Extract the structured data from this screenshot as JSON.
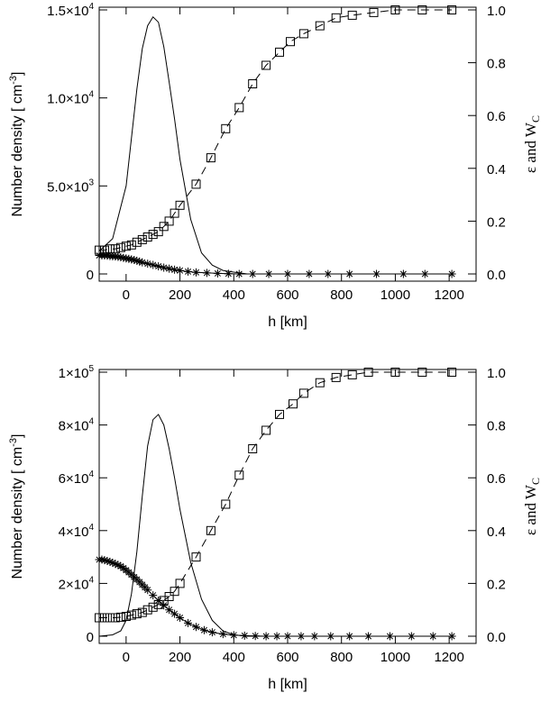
{
  "chart_data": [
    {
      "type": "line",
      "panel": "top",
      "xlabel": "h [km]",
      "ylabel": "Number density [ cm",
      "ylabel_exp": "-3",
      "ylabel_close": "]",
      "ylabel_right": "ε and W",
      "ylabel_right_sub": "C",
      "xlim": [
        -100,
        1300
      ],
      "ylim_left": [
        0,
        15000
      ],
      "ylim_right": [
        0,
        1.0
      ],
      "x_ticks": [
        0,
        200,
        400,
        600,
        800,
        1000,
        1200
      ],
      "y_left_ticks": [
        {
          "value": 0,
          "mant": "0",
          "exp": ""
        },
        {
          "value": 5000,
          "mant": "5.0×10",
          "exp": "3"
        },
        {
          "value": 10000,
          "mant": "1.0×10",
          "exp": "4"
        },
        {
          "value": 15000,
          "mant": "1.5×10",
          "exp": "4"
        }
      ],
      "y_right_ticks": [
        "0.0",
        "0.2",
        "0.4",
        "0.6",
        "0.8",
        "1.0"
      ],
      "series": [
        {
          "name": "Number density",
          "axis": "left",
          "style": "solid",
          "x": [
            -100,
            -50,
            0,
            40,
            60,
            80,
            100,
            120,
            140,
            160,
            180,
            200,
            240,
            280,
            320,
            360,
            400,
            450,
            500,
            600,
            800,
            1000,
            1200
          ],
          "y": [
            1300,
            2000,
            5000,
            10500,
            12800,
            14100,
            14600,
            14300,
            12900,
            10900,
            8800,
            6500,
            3100,
            1200,
            500,
            200,
            100,
            0,
            0,
            0,
            0,
            0,
            0
          ]
        },
        {
          "name": "W_C",
          "axis": "right",
          "style": "dashed",
          "marker": "square",
          "x": [
            -100,
            -80,
            -60,
            -40,
            -20,
            0,
            20,
            40,
            60,
            80,
            100,
            120,
            140,
            160,
            180,
            200,
            260,
            315,
            370,
            420,
            470,
            520,
            570,
            610,
            660,
            720,
            780,
            840,
            920,
            1000,
            1100,
            1210
          ],
          "y": [
            0.09,
            0.09,
            0.095,
            0.095,
            0.1,
            0.105,
            0.11,
            0.12,
            0.13,
            0.14,
            0.15,
            0.16,
            0.18,
            0.2,
            0.23,
            0.26,
            0.34,
            0.44,
            0.55,
            0.63,
            0.72,
            0.79,
            0.84,
            0.88,
            0.91,
            0.94,
            0.97,
            0.98,
            0.99,
            1.0,
            1.0,
            1.0
          ]
        },
        {
          "name": "ε",
          "axis": "right",
          "style": "solid",
          "marker": "star",
          "x": [
            -100,
            -90,
            -80,
            -70,
            -60,
            -50,
            -40,
            -30,
            -20,
            -10,
            0,
            10,
            20,
            30,
            40,
            50,
            60,
            80,
            100,
            120,
            140,
            160,
            180,
            200,
            230,
            260,
            300,
            340,
            380,
            420,
            470,
            530,
            600,
            680,
            750,
            830,
            930,
            1030,
            1110,
            1210
          ],
          "y": [
            0.07,
            0.07,
            0.07,
            0.069,
            0.068,
            0.067,
            0.066,
            0.065,
            0.063,
            0.061,
            0.059,
            0.057,
            0.055,
            0.053,
            0.05,
            0.047,
            0.044,
            0.039,
            0.034,
            0.029,
            0.024,
            0.02,
            0.016,
            0.013,
            0.009,
            0.006,
            0.004,
            0.002,
            0.001,
            0.0,
            0.0,
            0.0,
            0.0,
            0.0,
            0.0,
            0.0,
            0.0,
            0.0,
            0.0,
            0.0
          ]
        }
      ]
    },
    {
      "type": "line",
      "panel": "bottom",
      "xlabel": "h [km]",
      "ylabel": "Number density [ cm",
      "ylabel_exp": "-3",
      "ylabel_close": "]",
      "ylabel_right": "ε and W",
      "ylabel_right_sub": "C",
      "xlim": [
        -100,
        1300
      ],
      "ylim_left": [
        0,
        100000
      ],
      "ylim_right": [
        0,
        1.0
      ],
      "x_ticks": [
        0,
        200,
        400,
        600,
        800,
        1000,
        1200
      ],
      "y_left_ticks": [
        {
          "value": 0,
          "mant": "0",
          "exp": ""
        },
        {
          "value": 20000,
          "mant": "2×10",
          "exp": "4"
        },
        {
          "value": 40000,
          "mant": "4×10",
          "exp": "4"
        },
        {
          "value": 60000,
          "mant": "6×10",
          "exp": "4"
        },
        {
          "value": 80000,
          "mant": "8×10",
          "exp": "4"
        },
        {
          "value": 100000,
          "mant": "1×10",
          "exp": "5"
        }
      ],
      "y_right_ticks": [
        "0.0",
        "0.2",
        "0.4",
        "0.6",
        "0.8",
        "1.0"
      ],
      "series": [
        {
          "name": "Number density",
          "axis": "left",
          "style": "solid",
          "x": [
            -100,
            -50,
            -20,
            0,
            20,
            40,
            60,
            80,
            100,
            120,
            140,
            160,
            180,
            200,
            240,
            280,
            320,
            360,
            400,
            450,
            500,
            600,
            800,
            1000,
            1200
          ],
          "y": [
            0,
            500,
            2000,
            6000,
            16000,
            32000,
            53000,
            72000,
            82000,
            84000,
            80000,
            71000,
            60000,
            48000,
            28000,
            14000,
            6000,
            2000,
            500,
            0,
            0,
            0,
            0,
            0,
            0
          ]
        },
        {
          "name": "W_C",
          "axis": "right",
          "style": "dashed",
          "marker": "square",
          "x": [
            -100,
            -80,
            -60,
            -40,
            -20,
            0,
            20,
            40,
            60,
            80,
            100,
            120,
            140,
            160,
            180,
            200,
            260,
            315,
            370,
            420,
            470,
            520,
            570,
            620,
            660,
            720,
            780,
            840,
            900,
            1000,
            1100,
            1210
          ],
          "y": [
            0.07,
            0.07,
            0.07,
            0.07,
            0.072,
            0.075,
            0.08,
            0.085,
            0.09,
            0.1,
            0.11,
            0.12,
            0.135,
            0.15,
            0.17,
            0.2,
            0.3,
            0.4,
            0.5,
            0.61,
            0.71,
            0.78,
            0.84,
            0.88,
            0.92,
            0.96,
            0.98,
            0.99,
            1.0,
            1.0,
            1.0,
            1.0
          ]
        },
        {
          "name": "ε",
          "axis": "right",
          "style": "solid",
          "marker": "star",
          "x": [
            -100,
            -90,
            -80,
            -70,
            -60,
            -50,
            -40,
            -30,
            -20,
            -10,
            0,
            10,
            20,
            30,
            40,
            50,
            60,
            70,
            80,
            100,
            120,
            140,
            160,
            180,
            200,
            230,
            260,
            290,
            320,
            360,
            400,
            440,
            480,
            520,
            560,
            600,
            650,
            700,
            760,
            830,
            900,
            980,
            1060,
            1140,
            1210
          ],
          "y": [
            0.29,
            0.29,
            0.288,
            0.285,
            0.282,
            0.278,
            0.274,
            0.27,
            0.265,
            0.258,
            0.25,
            0.242,
            0.233,
            0.224,
            0.215,
            0.205,
            0.195,
            0.185,
            0.175,
            0.155,
            0.135,
            0.117,
            0.1,
            0.085,
            0.07,
            0.05,
            0.035,
            0.023,
            0.015,
            0.008,
            0.004,
            0.002,
            0.001,
            0.0,
            0.0,
            0.0,
            0.0,
            0.0,
            0.0,
            0.0,
            0.0,
            0.0,
            0.0,
            0.0,
            0.0
          ]
        }
      ]
    }
  ]
}
